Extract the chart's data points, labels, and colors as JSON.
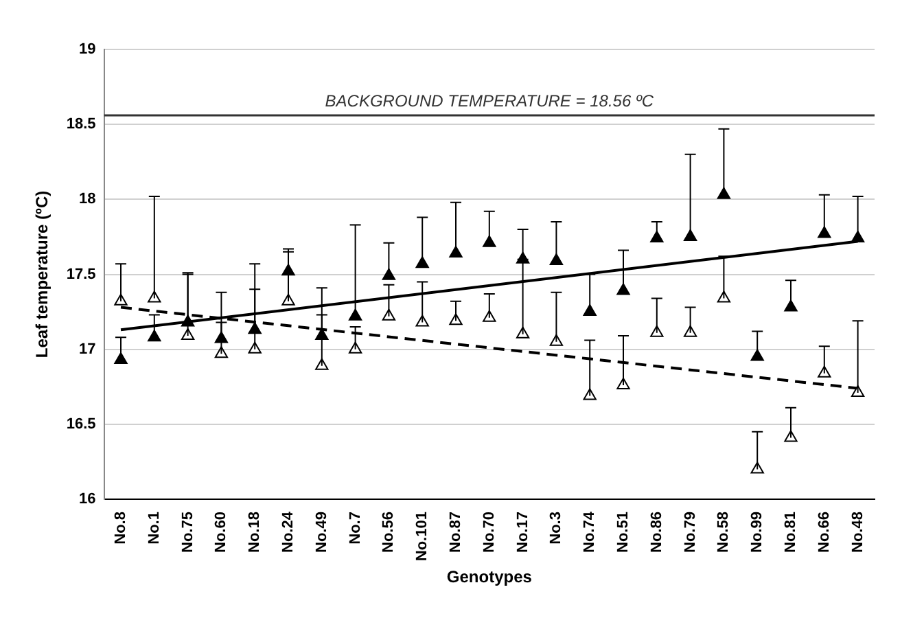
{
  "chart_data": {
    "type": "scatter",
    "ylabel": "Leaf temperature (ºC)",
    "xlabel": "Genotypes",
    "categories": [
      "No.8",
      "No.1",
      "No.75",
      "No.60",
      "No.18",
      "No.24",
      "No.49",
      "No.7",
      "No.56",
      "No.101",
      "No.87",
      "No.70",
      "No.17",
      "No.3",
      "No.74",
      "No.51",
      "No.86",
      "No.79",
      "No.58",
      "No.99",
      "No.81",
      "No.66",
      "No.48"
    ],
    "series": [
      {
        "marker": "triangle",
        "color": "#000000",
        "values": [
          16.93,
          17.08,
          17.18,
          17.07,
          17.13,
          17.52,
          17.09,
          17.22,
          17.49,
          17.57,
          17.64,
          17.71,
          17.6,
          17.59,
          17.25,
          17.39,
          17.74,
          17.75,
          18.03,
          16.95,
          17.28,
          17.77,
          17.74
        ],
        "errors": [
          [
            16.93,
            17.08
          ],
          [
            17.08,
            17.23
          ],
          [
            17.18,
            17.51
          ],
          [
            17.07,
            17.38
          ],
          [
            17.13,
            17.4
          ],
          [
            17.52,
            17.67
          ],
          [
            17.09,
            17.41
          ],
          [
            17.22,
            17.83
          ],
          [
            17.49,
            17.71
          ],
          [
            17.57,
            17.88
          ],
          [
            17.64,
            17.98
          ],
          [
            17.71,
            17.92
          ],
          [
            17.6,
            17.8
          ],
          [
            17.59,
            17.85
          ],
          [
            17.25,
            17.5
          ],
          [
            17.39,
            17.66
          ],
          [
            17.74,
            17.85
          ],
          [
            17.75,
            18.3
          ],
          [
            18.03,
            18.47
          ],
          [
            16.95,
            17.12
          ],
          [
            17.28,
            17.46
          ],
          [
            17.77,
            18.03
          ],
          [
            17.74,
            18.02
          ]
        ]
      },
      {
        "marker": "triangle",
        "color": "#ffffff",
        "values": [
          17.32,
          17.34,
          17.09,
          16.97,
          17.0,
          17.32,
          16.89,
          17.0,
          17.22,
          17.18,
          17.19,
          17.21,
          17.1,
          17.05,
          16.69,
          16.76,
          17.11,
          17.11,
          17.34,
          16.2,
          16.41,
          16.84,
          16.71
        ],
        "errors": [
          [
            17.32,
            17.57
          ],
          [
            17.34,
            18.02
          ],
          [
            17.09,
            17.5
          ],
          [
            16.97,
            17.18
          ],
          [
            17.0,
            17.57
          ],
          [
            17.32,
            17.65
          ],
          [
            16.89,
            17.23
          ],
          [
            17.0,
            17.15
          ],
          [
            17.22,
            17.43
          ],
          [
            17.18,
            17.45
          ],
          [
            17.19,
            17.32
          ],
          [
            17.21,
            17.37
          ],
          [
            17.1,
            17.6
          ],
          [
            17.05,
            17.38
          ],
          [
            16.69,
            17.06
          ],
          [
            16.76,
            17.09
          ],
          [
            17.11,
            17.34
          ],
          [
            17.11,
            17.28
          ],
          [
            17.34,
            17.62
          ],
          [
            16.2,
            16.45
          ],
          [
            16.41,
            16.61
          ],
          [
            16.84,
            17.02
          ],
          [
            16.71,
            17.19
          ]
        ]
      },
      {
        "type": "line",
        "color": "#000000",
        "line_style": "solid",
        "x": [
          "No.8",
          "No.48"
        ],
        "values": [
          17.13,
          17.72
        ]
      },
      {
        "type": "line",
        "color": "#000000",
        "line_style": "dashed",
        "x": [
          "No.8",
          "No.48"
        ],
        "values": [
          17.28,
          16.74
        ]
      }
    ],
    "ylim": [
      16,
      19
    ],
    "yticks": [
      16,
      16.5,
      17,
      17.5,
      18,
      18.5,
      19
    ],
    "grid": "y",
    "legend": false,
    "ref_lines": [
      {
        "axis": "y",
        "value": 18.56,
        "label": "BACKGROUND TEMPERATURE = 18.56 ºC",
        "color": "#333333"
      }
    ]
  }
}
